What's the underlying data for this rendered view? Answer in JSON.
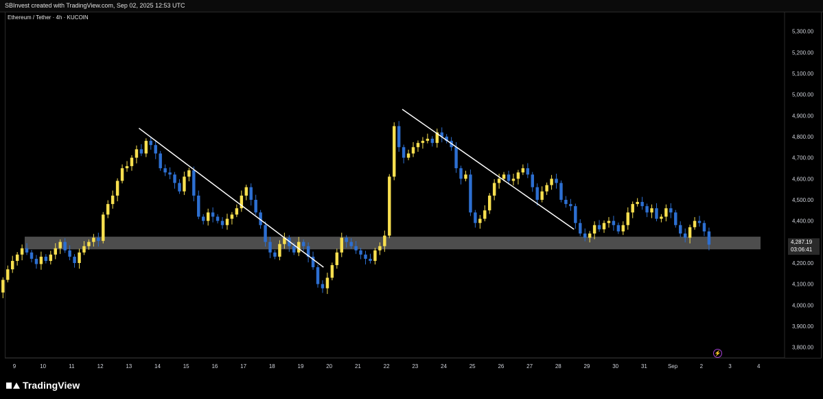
{
  "header": {
    "attribution": "SBInvest created with TradingView.com, Sep 02, 2025 12:53 UTC"
  },
  "symbol": {
    "title": "Ethereum / Tether · 4h · KUCOIN"
  },
  "footer": {
    "brand": "TradingView"
  },
  "price_tag": {
    "price": "4,287.19",
    "countdown": "03:06:41"
  },
  "chart_data": {
    "type": "candlestick",
    "ylim": [
      3750,
      5390
    ],
    "y_ticks": [
      3800,
      3900,
      4000,
      4100,
      4200,
      4300,
      4400,
      4500,
      4600,
      4700,
      4800,
      4900,
      5000,
      5100,
      5200,
      5300
    ],
    "y_tick_labels": [
      "3,800.00",
      "3,900.00",
      "4,000.00",
      "4,100.00",
      "4,200.00",
      "4,300.00",
      "4,400.00",
      "4,500.00",
      "4,600.00",
      "4,700.00",
      "4,800.00",
      "4,900.00",
      "5,000.00",
      "5,100.00",
      "5,200.00",
      "5,300.00"
    ],
    "x_labels": [
      "9",
      "10",
      "11",
      "12",
      "13",
      "14",
      "15",
      "16",
      "17",
      "18",
      "19",
      "20",
      "21",
      "22",
      "23",
      "24",
      "25",
      "26",
      "27",
      "28",
      "29",
      "30",
      "31",
      "Sep",
      "2",
      "3",
      "4"
    ],
    "candles_per_day": 6,
    "colors": {
      "up": "#f7df4f",
      "down": "#2d6fd1",
      "trendline": "#ffffff",
      "zone": "#5a5a5a"
    },
    "support_zone": [
      4265,
      4325
    ],
    "trendlines": [
      {
        "from": [
          13.35,
          4840
        ],
        "to": [
          19.8,
          4180
        ]
      },
      {
        "from": [
          22.55,
          4930
        ],
        "to": [
          28.55,
          4360
        ]
      }
    ],
    "last_price": 4287.19,
    "closes": [
      3960,
      4010,
      4060,
      4120,
      4170,
      4210,
      4240,
      4270,
      4250,
      4220,
      4195,
      4230,
      4210,
      4240,
      4270,
      4300,
      4260,
      4230,
      4200,
      4250,
      4280,
      4300,
      4320,
      4305,
      4430,
      4480,
      4520,
      4590,
      4650,
      4660,
      4700,
      4740,
      4720,
      4780,
      4760,
      4720,
      4650,
      4630,
      4620,
      4580,
      4540,
      4610,
      4640,
      4520,
      4420,
      4400,
      4440,
      4420,
      4400,
      4380,
      4410,
      4430,
      4460,
      4520,
      4560,
      4500,
      4440,
      4380,
      4300,
      4250,
      4230,
      4290,
      4320,
      4280,
      4250,
      4300,
      4280,
      4230,
      4180,
      4100,
      4080,
      4130,
      4190,
      4250,
      4320,
      4300,
      4280,
      4260,
      4240,
      4220,
      4210,
      4260,
      4280,
      4330,
      4610,
      4850,
      4750,
      4700,
      4720,
      4750,
      4770,
      4780,
      4790,
      4770,
      4820,
      4800,
      4780,
      4750,
      4650,
      4600,
      4620,
      4440,
      4390,
      4410,
      4450,
      4520,
      4580,
      4600,
      4620,
      4590,
      4600,
      4630,
      4650,
      4620,
      4560,
      4500,
      4540,
      4570,
      4600,
      4580,
      4500,
      4480,
      4470,
      4390,
      4340,
      4320,
      4340,
      4380,
      4360,
      4390,
      4400,
      4380,
      4350,
      4380,
      4440,
      4480,
      4490,
      4470,
      4440,
      4460,
      4410,
      4420,
      4460,
      4440,
      4380,
      4340,
      4320,
      4370,
      4400,
      4390,
      4350,
      4287.19
    ]
  }
}
